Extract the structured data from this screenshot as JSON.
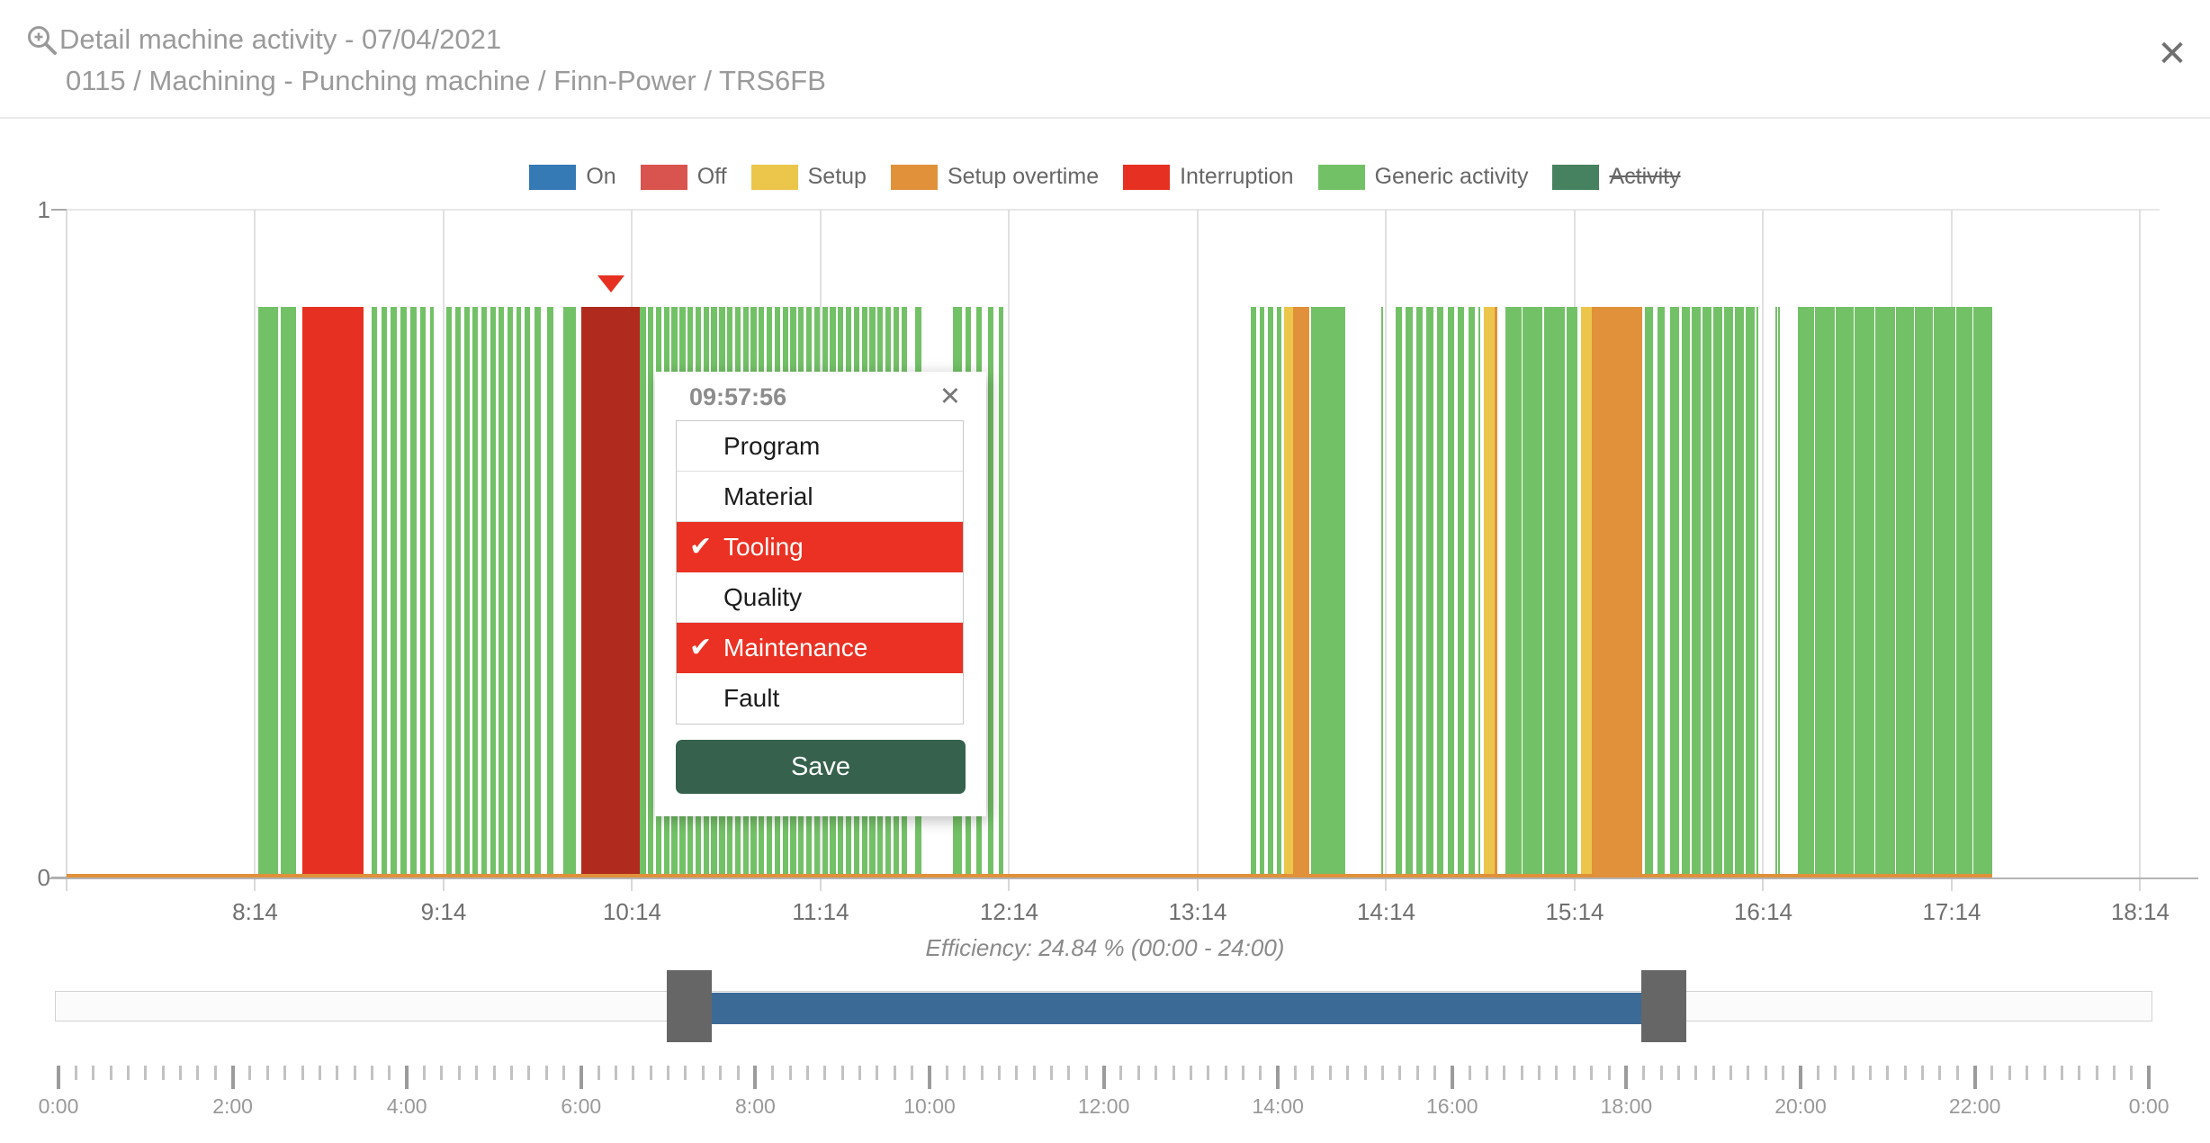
{
  "header": {
    "title": "Detail machine activity - 07/04/2021",
    "subtitle": "0115 / Machining - Punching machine / Finn-Power / TRS6FB",
    "close_glyph": "✕"
  },
  "colors": {
    "on": "#3579b5",
    "off": "#d9534f",
    "setup": "#ecc64b",
    "setup_overtime": "#e0913a",
    "interruption": "#e63122",
    "interruption_selected": "#b02b1e",
    "generic": "#73c167",
    "activity": "#468160",
    "popup_selected_row": "#ea3123",
    "save_button": "#36614d",
    "slider_range": "#3c6a96",
    "slider_handle": "#666666",
    "baseline": "#e6a43c"
  },
  "legend": {
    "items": [
      {
        "label": "On",
        "color": "#3579b5",
        "disabled": false
      },
      {
        "label": "Off",
        "color": "#d9534f",
        "disabled": false
      },
      {
        "label": "Setup",
        "color": "#ecc64b",
        "disabled": false
      },
      {
        "label": "Setup overtime",
        "color": "#e0913a",
        "disabled": false
      },
      {
        "label": "Interruption",
        "color": "#e63122",
        "disabled": false
      },
      {
        "label": "Generic activity",
        "color": "#73c167",
        "disabled": false
      },
      {
        "label": "Activity",
        "color": "#468160",
        "disabled": true
      }
    ]
  },
  "chart_data": {
    "type": "bar",
    "title": "Machine activity timeline (barcode chart)",
    "ylabel": "",
    "y_ticks": [
      {
        "label": "1",
        "value": 1
      },
      {
        "label": "0",
        "value": 0
      }
    ],
    "ylim": [
      0,
      1
    ],
    "bar_value": 0.85,
    "visible_window_hours": [
      7.233,
      18.336
    ],
    "x_ticks": [
      {
        "label": "8:14",
        "hour": 8.2333
      },
      {
        "label": "9:14",
        "hour": 9.2333
      },
      {
        "label": "10:14",
        "hour": 10.2333
      },
      {
        "label": "11:14",
        "hour": 11.2333
      },
      {
        "label": "12:14",
        "hour": 12.2333
      },
      {
        "label": "13:14",
        "hour": 13.2333
      },
      {
        "label": "14:14",
        "hour": 14.2333
      },
      {
        "label": "15:14",
        "hour": 15.2333
      },
      {
        "label": "16:14",
        "hour": 16.2333
      },
      {
        "label": "17:14",
        "hour": 17.2333
      },
      {
        "label": "18:14",
        "hour": 18.2333
      }
    ],
    "marker": {
      "hour": 10.12,
      "type": "interruption_selected"
    },
    "baseline": {
      "type": "setup_overtime",
      "start": 7.233,
      "end": 17.448
    },
    "segments": [
      {
        "type": "generic",
        "start": 8.25,
        "end": 8.355
      },
      {
        "type": "generic",
        "start": 8.367,
        "end": 8.45
      },
      {
        "type": "interruption",
        "start": 8.483,
        "end": 8.81
      },
      {
        "type": "generic",
        "start": 8.85,
        "end": 9.183,
        "stripe": 0.03,
        "gap": 0.022
      },
      {
        "type": "generic",
        "start": 9.25,
        "end": 9.7,
        "stripe": 0.028,
        "gap": 0.018
      },
      {
        "type": "generic",
        "start": 9.717,
        "end": 9.75
      },
      {
        "type": "generic",
        "start": 9.783,
        "end": 9.817
      },
      {
        "type": "generic",
        "start": 9.867,
        "end": 9.933
      },
      {
        "type": "interruption_selected",
        "start": 9.966,
        "end": 10.275,
        "label": "09:57:56"
      },
      {
        "type": "generic",
        "start": 10.275,
        "end": 11.7,
        "stripe": 0.03,
        "gap": 0.012
      },
      {
        "type": "generic",
        "start": 11.733,
        "end": 11.767
      },
      {
        "type": "generic",
        "start": 11.933,
        "end": 11.983
      },
      {
        "type": "generic",
        "start": 12.0,
        "end": 12.2,
        "stripe": 0.03,
        "gap": 0.03
      },
      {
        "type": "generic",
        "start": 13.517,
        "end": 13.683,
        "stripe": 0.025,
        "gap": 0.02
      },
      {
        "type": "setup",
        "start": 13.69,
        "end": 13.74
      },
      {
        "type": "setup_overtime",
        "start": 13.74,
        "end": 13.823
      },
      {
        "type": "generic",
        "start": 13.837,
        "end": 14.017
      },
      {
        "type": "generic",
        "start": 14.205,
        "end": 14.213
      },
      {
        "type": "generic",
        "start": 14.283,
        "end": 14.733,
        "stripe": 0.035,
        "gap": 0.02
      },
      {
        "type": "setup",
        "start": 14.75,
        "end": 14.807
      },
      {
        "type": "setup_overtime",
        "start": 14.807,
        "end": 14.823
      },
      {
        "type": "generic",
        "start": 14.867,
        "end": 14.95
      },
      {
        "type": "generic",
        "start": 14.958,
        "end": 15.063
      },
      {
        "type": "generic",
        "start": 15.071,
        "end": 15.183
      },
      {
        "type": "generic",
        "start": 15.191,
        "end": 15.25
      },
      {
        "type": "setup",
        "start": 15.267,
        "end": 15.323
      },
      {
        "type": "setup_overtime",
        "start": 15.323,
        "end": 15.59
      },
      {
        "type": "generic",
        "start": 15.608,
        "end": 15.742,
        "stripe": 0.04,
        "gap": 0.025
      },
      {
        "type": "generic",
        "start": 15.742,
        "end": 16.2,
        "stripe": 0.045,
        "gap": 0.012
      },
      {
        "type": "generic",
        "start": 16.3,
        "end": 16.308
      },
      {
        "type": "generic",
        "start": 16.312,
        "end": 16.32
      },
      {
        "type": "generic",
        "start": 16.417,
        "end": 16.503
      },
      {
        "type": "generic",
        "start": 16.506,
        "end": 16.613
      },
      {
        "type": "generic",
        "start": 16.619,
        "end": 16.713
      },
      {
        "type": "generic",
        "start": 16.719,
        "end": 16.823
      },
      {
        "type": "generic",
        "start": 16.829,
        "end": 16.933
      },
      {
        "type": "generic",
        "start": 16.939,
        "end": 17.033
      },
      {
        "type": "generic",
        "start": 17.039,
        "end": 17.133
      },
      {
        "type": "generic",
        "start": 17.139,
        "end": 17.253
      },
      {
        "type": "generic",
        "start": 17.259,
        "end": 17.343
      },
      {
        "type": "generic",
        "start": 17.349,
        "end": 17.448
      }
    ]
  },
  "popup": {
    "time": "09:57:56",
    "close_glyph": "✕",
    "check_glyph": "✔",
    "options": [
      {
        "label": "Program",
        "checked": false
      },
      {
        "label": "Material",
        "checked": false
      },
      {
        "label": "Tooling",
        "checked": true
      },
      {
        "label": "Quality",
        "checked": false
      },
      {
        "label": "Maintenance",
        "checked": true
      },
      {
        "label": "Fault",
        "checked": false
      }
    ],
    "save_label": "Save"
  },
  "efficiency": {
    "text": "Efficiency: 24.84 % (00:00 - 24:00)"
  },
  "slider": {
    "min_hour": 0,
    "max_hour": 24,
    "selected_start_hour": 7.24,
    "selected_end_hour": 18.43
  },
  "ruler": {
    "minor_step_hours": 0.2,
    "major_step_hours": 2,
    "labels": [
      "0:00",
      "2:00",
      "4:00",
      "6:00",
      "8:00",
      "10:00",
      "12:00",
      "14:00",
      "16:00",
      "18:00",
      "20:00",
      "22:00",
      "0:00"
    ]
  }
}
